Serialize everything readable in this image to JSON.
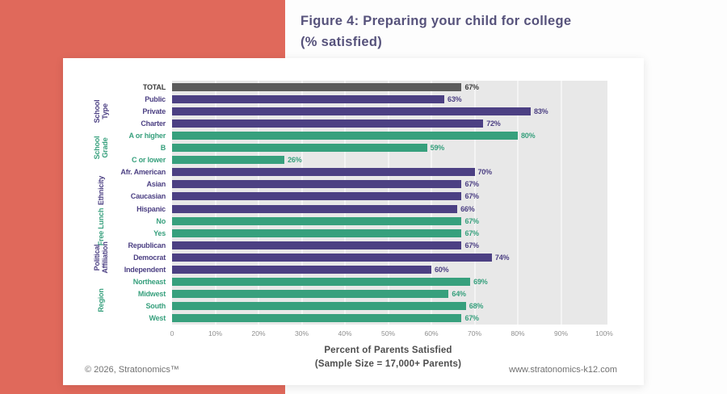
{
  "title": {
    "line1": "Figure 4: Preparing your child for college",
    "line2": "(% satisfied)"
  },
  "footer": {
    "copyright": "© 2026, Stratonomics™",
    "website": "www.stratonomics-k12.com"
  },
  "colors": {
    "coral": "#e0695b",
    "purple": "#4c4083",
    "green": "#37a07d",
    "gray": "#5c5c5c",
    "plot_bg": "#e8e8e8",
    "gridline": "#f4f4f4",
    "title_text": "#56527b",
    "tick_text": "#8f8f8f",
    "axis_label_text": "#4d4d4d",
    "footer_text": "#717171"
  },
  "chart_data": {
    "type": "bar",
    "orientation": "horizontal",
    "value_suffix": "%",
    "xlim": [
      0,
      100
    ],
    "x_ticks": [
      "0",
      "10%",
      "20%",
      "30%",
      "40%",
      "50%",
      "60%",
      "70%",
      "80%",
      "90%",
      "100%"
    ],
    "xlabel_line1": "Percent of Parents Satisfied",
    "xlabel_line2": "(Sample Size = 17,000+ Parents)",
    "legend": "none",
    "grid": "vertical-white-on-gray",
    "groups": [
      {
        "label": "",
        "color_key": "gray",
        "rows": [
          {
            "label": "TOTAL",
            "value": 67
          }
        ]
      },
      {
        "label": "School Type",
        "color_key": "purple",
        "rows": [
          {
            "label": "Public",
            "value": 63
          },
          {
            "label": "Private",
            "value": 83
          },
          {
            "label": "Charter",
            "value": 72
          }
        ]
      },
      {
        "label": "School Grade",
        "color_key": "green",
        "rows": [
          {
            "label": "A or higher",
            "value": 80
          },
          {
            "label": "B",
            "value": 59
          },
          {
            "label": "C or lower",
            "value": 26
          }
        ]
      },
      {
        "label": "Ethnicity",
        "color_key": "purple",
        "rows": [
          {
            "label": "Afr. American",
            "value": 70
          },
          {
            "label": "Asian",
            "value": 67
          },
          {
            "label": "Caucasian",
            "value": 67
          },
          {
            "label": "Hispanic",
            "value": 66
          }
        ]
      },
      {
        "label": "Free Lunch",
        "color_key": "green",
        "rows": [
          {
            "label": "No",
            "value": 67
          },
          {
            "label": "Yes",
            "value": 67
          }
        ]
      },
      {
        "label": "Political Affiliation",
        "color_key": "purple",
        "rows": [
          {
            "label": "Republican",
            "value": 67
          },
          {
            "label": "Democrat",
            "value": 74
          },
          {
            "label": "Independent",
            "value": 60
          }
        ]
      },
      {
        "label": "Region",
        "color_key": "green",
        "rows": [
          {
            "label": "Northeast",
            "value": 69
          },
          {
            "label": "Midwest",
            "value": 64
          },
          {
            "label": "South",
            "value": 68
          },
          {
            "label": "West",
            "value": 67
          }
        ]
      }
    ]
  }
}
